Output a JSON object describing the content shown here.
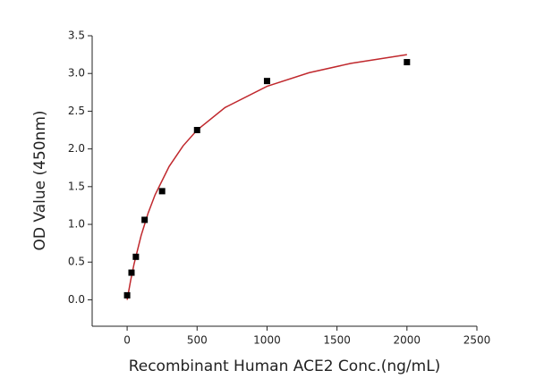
{
  "chart_data": {
    "type": "scatter",
    "xlabel": "Recombinant Human ACE2 Conc.(ng/mL)",
    "ylabel": "OD Value (450nm)",
    "points": {
      "color": "#000000",
      "x": [
        0,
        31.25,
        62.5,
        125,
        250,
        500,
        1000,
        2000
      ],
      "values": [
        0.06,
        0.36,
        0.57,
        1.06,
        1.44,
        2.25,
        2.9,
        3.15
      ]
    },
    "fit": {
      "color": "#c0282d",
      "x": [
        0,
        25,
        50,
        100,
        150,
        200,
        300,
        400,
        500,
        700,
        1000,
        1300,
        1600,
        2000
      ],
      "values": [
        0,
        0.256,
        0.479,
        0.852,
        1.149,
        1.393,
        1.767,
        2.041,
        2.25,
        2.549,
        2.83,
        3.01,
        3.134,
        3.25
      ]
    },
    "xlim": [
      -250,
      2500
    ],
    "xticks": [
      0,
      500,
      1000,
      1500,
      2000,
      2500
    ],
    "ylim": [
      -0.35,
      3.5
    ],
    "yticks": [
      {
        "value": 0,
        "label": "0.0"
      },
      {
        "value": 0.5,
        "label": "0.5"
      },
      {
        "value": 1,
        "label": "1.0"
      },
      {
        "value": 1.5,
        "label": "1.5"
      },
      {
        "value": 2,
        "label": "2.0"
      },
      {
        "value": 2.5,
        "label": "2.5"
      },
      {
        "value": 3,
        "label": "3.0"
      },
      {
        "value": 3.5,
        "label": "3.5"
      }
    ]
  }
}
